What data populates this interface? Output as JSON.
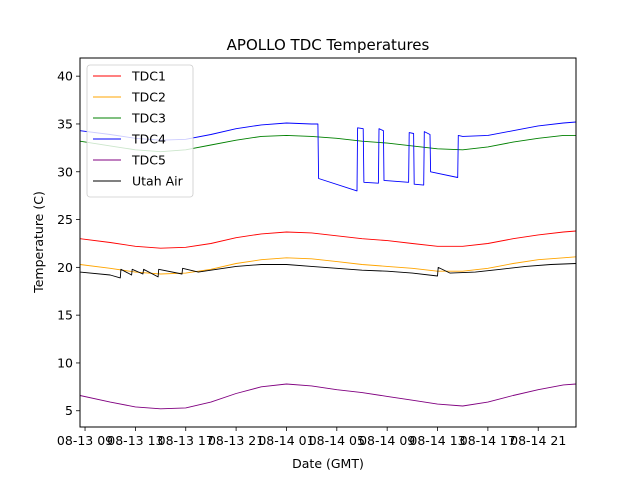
{
  "chart_data": {
    "type": "line",
    "title": "APOLLO TDC Temperatures",
    "xlabel": "Date (GMT)",
    "ylabel": "Temperature (C)",
    "x_units": "hours since 08-13 00:00 GMT",
    "xlim": [
      8.6,
      48.0
    ],
    "ylim": [
      3.3,
      41.9
    ],
    "grid": false,
    "legend_position": "upper-left",
    "x_ticks": [
      {
        "value": 9,
        "label": "08-13 09"
      },
      {
        "value": 13,
        "label": "08-13 13"
      },
      {
        "value": 17,
        "label": "08-13 17"
      },
      {
        "value": 21,
        "label": "08-13 21"
      },
      {
        "value": 25,
        "label": "08-14 01"
      },
      {
        "value": 29,
        "label": "08-14 05"
      },
      {
        "value": 33,
        "label": "08-14 09"
      },
      {
        "value": 37,
        "label": "08-14 13"
      },
      {
        "value": 41,
        "label": "08-14 17"
      },
      {
        "value": 45,
        "label": "08-14 21"
      }
    ],
    "y_ticks": [
      {
        "value": 5,
        "label": "5"
      },
      {
        "value": 10,
        "label": "10"
      },
      {
        "value": 15,
        "label": "15"
      },
      {
        "value": 20,
        "label": "20"
      },
      {
        "value": 25,
        "label": "25"
      },
      {
        "value": 30,
        "label": "30"
      },
      {
        "value": 35,
        "label": "35"
      },
      {
        "value": 40,
        "label": "40"
      }
    ],
    "series": [
      {
        "name": "TDC1",
        "color": "#ff0000",
        "x": [
          8.6,
          11,
          13,
          15,
          17,
          19,
          21,
          23,
          25,
          27,
          29,
          31,
          33,
          35,
          37,
          39,
          41,
          43,
          45,
          47,
          48
        ],
        "y": [
          23.0,
          22.6,
          22.2,
          22.0,
          22.1,
          22.5,
          23.1,
          23.5,
          23.7,
          23.6,
          23.3,
          23.0,
          22.8,
          22.5,
          22.2,
          22.2,
          22.5,
          23.0,
          23.4,
          23.7,
          23.8
        ]
      },
      {
        "name": "TDC2",
        "color": "#ffa500",
        "x": [
          8.6,
          11,
          13,
          15,
          17,
          19,
          21,
          23,
          25,
          27,
          29,
          31,
          33,
          35,
          37,
          39,
          41,
          43,
          45,
          47,
          48
        ],
        "y": [
          20.3,
          19.9,
          19.5,
          19.3,
          19.4,
          19.8,
          20.4,
          20.8,
          21.0,
          20.9,
          20.6,
          20.3,
          20.1,
          19.9,
          19.6,
          19.6,
          19.9,
          20.4,
          20.8,
          21.0,
          21.1
        ]
      },
      {
        "name": "TDC3",
        "color": "#008000",
        "x": [
          8.6,
          11,
          13,
          15,
          17,
          19,
          21,
          23,
          25,
          27,
          29,
          31,
          33,
          35,
          37,
          39,
          41,
          43,
          45,
          47,
          48
        ],
        "y": [
          33.2,
          32.7,
          32.3,
          32.1,
          32.3,
          32.8,
          33.3,
          33.7,
          33.8,
          33.7,
          33.5,
          33.2,
          33.0,
          32.7,
          32.4,
          32.3,
          32.6,
          33.1,
          33.5,
          33.8,
          33.8
        ]
      },
      {
        "name": "TDC4",
        "color": "#0000ff",
        "x": [
          8.6,
          11,
          13,
          15,
          17,
          19,
          21,
          23,
          25,
          27,
          27.5,
          27.55,
          30.6,
          30.65,
          31.1,
          31.15,
          32.3,
          32.35,
          32.7,
          32.75,
          34.7,
          34.75,
          35.1,
          35.15,
          35.9,
          35.95,
          36.4,
          36.45,
          38.6,
          38.65,
          39,
          41,
          43,
          45,
          47,
          48
        ],
        "y": [
          34.3,
          33.9,
          33.5,
          33.3,
          33.4,
          33.9,
          34.5,
          34.9,
          35.1,
          35.0,
          35.0,
          29.3,
          28.0,
          34.6,
          34.5,
          28.9,
          28.8,
          34.5,
          34.3,
          29.1,
          28.9,
          34.1,
          34.0,
          28.7,
          28.6,
          34.2,
          33.9,
          30.0,
          29.4,
          33.8,
          33.7,
          33.8,
          34.3,
          34.8,
          35.1,
          35.2
        ]
      },
      {
        "name": "TDC5",
        "color": "#800080",
        "x": [
          8.6,
          11,
          13,
          15,
          17,
          19,
          21,
          23,
          25,
          27,
          29,
          31,
          33,
          35,
          37,
          39,
          41,
          43,
          45,
          47,
          48
        ],
        "y": [
          6.6,
          5.9,
          5.4,
          5.2,
          5.3,
          5.9,
          6.8,
          7.5,
          7.8,
          7.6,
          7.2,
          6.9,
          6.5,
          6.1,
          5.7,
          5.5,
          5.9,
          6.6,
          7.2,
          7.7,
          7.8
        ]
      },
      {
        "name": "Utah Air",
        "color": "#000000",
        "x": [
          8.6,
          11,
          11.8,
          11.85,
          12.7,
          12.75,
          13.6,
          13.65,
          14.8,
          14.85,
          16.7,
          16.75,
          18,
          19,
          21,
          23,
          25,
          27,
          29,
          31,
          33,
          35,
          37,
          37.05,
          38,
          40,
          42,
          44,
          46,
          48
        ],
        "y": [
          19.5,
          19.2,
          18.9,
          19.8,
          19.2,
          19.8,
          19.3,
          19.8,
          19.0,
          19.8,
          19.3,
          19.9,
          19.5,
          19.7,
          20.1,
          20.3,
          20.3,
          20.1,
          19.9,
          19.7,
          19.6,
          19.4,
          19.1,
          20.0,
          19.4,
          19.5,
          19.8,
          20.1,
          20.3,
          20.4
        ]
      }
    ]
  }
}
